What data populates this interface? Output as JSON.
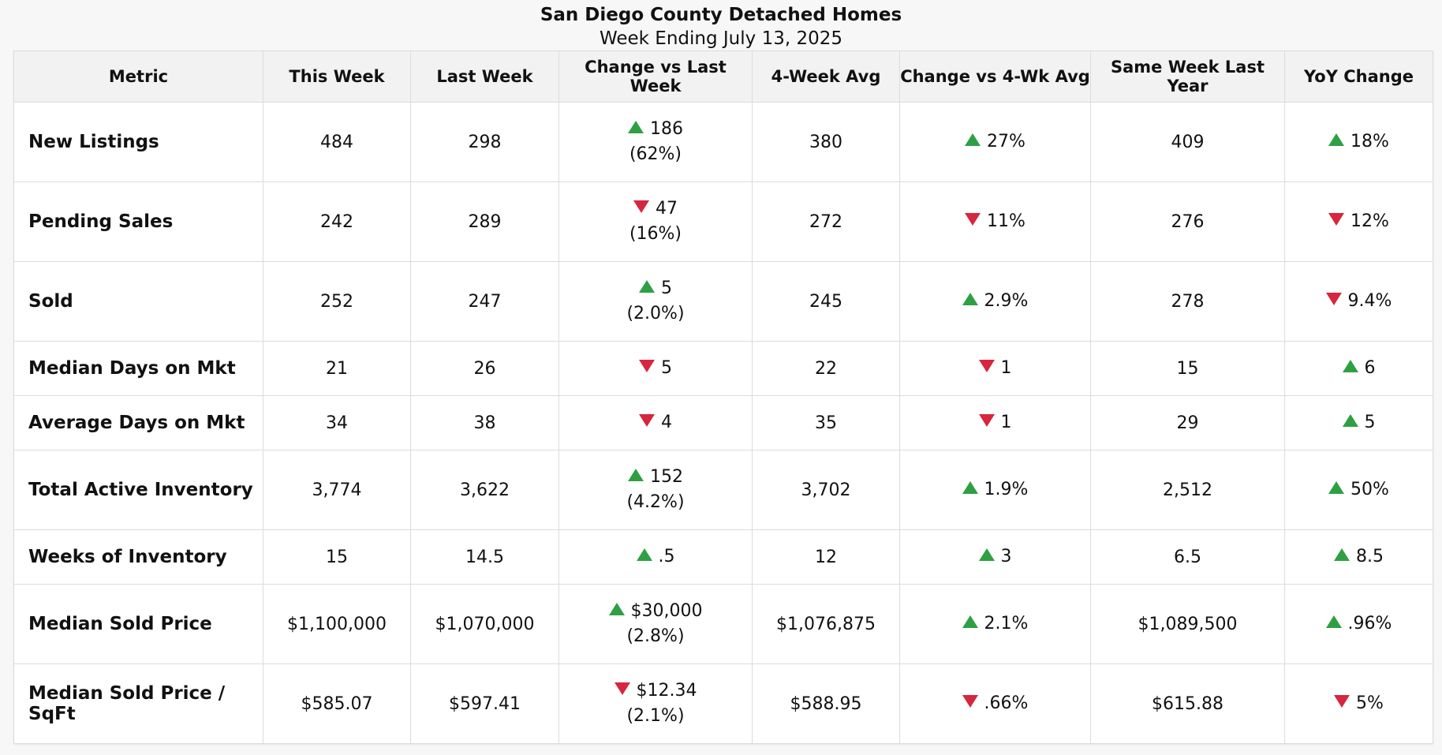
{
  "title": "San Diego County Detached Homes",
  "subtitle": "Week Ending July 13, 2025",
  "colors": {
    "up": "#2ea043",
    "down": "#d7263d"
  },
  "columns": [
    "Metric",
    "This Week",
    "Last Week",
    "Change vs Last Week",
    "4-Week Avg",
    "Change vs 4-Wk Avg",
    "Same Week Last Year",
    "YoY Change"
  ],
  "rows": [
    {
      "metric": "New Listings",
      "this_week": "484",
      "last_week": "298",
      "chg_lw": {
        "dir": "up",
        "value": "186",
        "pct": "(62%)"
      },
      "avg4": "380",
      "chg_4w": {
        "dir": "up",
        "value": "27%"
      },
      "last_year": "409",
      "yoy": {
        "dir": "up",
        "value": "18%"
      }
    },
    {
      "metric": "Pending Sales",
      "this_week": "242",
      "last_week": "289",
      "chg_lw": {
        "dir": "down",
        "value": "47",
        "pct": "(16%)"
      },
      "avg4": "272",
      "chg_4w": {
        "dir": "down",
        "value": "11%"
      },
      "last_year": "276",
      "yoy": {
        "dir": "down",
        "value": "12%"
      }
    },
    {
      "metric": "Sold",
      "this_week": "252",
      "last_week": "247",
      "chg_lw": {
        "dir": "up",
        "value": "5",
        "pct": "(2.0%)"
      },
      "avg4": "245",
      "chg_4w": {
        "dir": "up",
        "value": "2.9%"
      },
      "last_year": "278",
      "yoy": {
        "dir": "down",
        "value": "9.4%"
      }
    },
    {
      "metric": "Median Days on Mkt",
      "this_week": "21",
      "last_week": "26",
      "chg_lw": {
        "dir": "down",
        "value": "5",
        "pct": ""
      },
      "avg4": "22",
      "chg_4w": {
        "dir": "down",
        "value": "1"
      },
      "last_year": "15",
      "yoy": {
        "dir": "up",
        "value": "6"
      }
    },
    {
      "metric": "Average Days on Mkt",
      "this_week": "34",
      "last_week": "38",
      "chg_lw": {
        "dir": "down",
        "value": "4",
        "pct": ""
      },
      "avg4": "35",
      "chg_4w": {
        "dir": "down",
        "value": "1"
      },
      "last_year": "29",
      "yoy": {
        "dir": "up",
        "value": "5"
      }
    },
    {
      "metric": "Total Active Inventory",
      "this_week": "3,774",
      "last_week": "3,622",
      "chg_lw": {
        "dir": "up",
        "value": "152",
        "pct": "(4.2%)"
      },
      "avg4": "3,702",
      "chg_4w": {
        "dir": "up",
        "value": "1.9%"
      },
      "last_year": "2,512",
      "yoy": {
        "dir": "up",
        "value": "50%"
      }
    },
    {
      "metric": "Weeks of Inventory",
      "this_week": "15",
      "last_week": "14.5",
      "chg_lw": {
        "dir": "up",
        "value": ".5",
        "pct": ""
      },
      "avg4": "12",
      "chg_4w": {
        "dir": "up",
        "value": "3"
      },
      "last_year": "6.5",
      "yoy": {
        "dir": "up",
        "value": "8.5"
      }
    },
    {
      "metric": "Median Sold Price",
      "this_week": "$1,100,000",
      "last_week": "$1,070,000",
      "chg_lw": {
        "dir": "up",
        "value": "$30,000",
        "pct": "(2.8%)"
      },
      "avg4": "$1,076,875",
      "chg_4w": {
        "dir": "up",
        "value": "2.1%"
      },
      "last_year": "$1,089,500",
      "yoy": {
        "dir": "up",
        "value": ".96%"
      }
    },
    {
      "metric": "Median Sold Price / SqFt",
      "this_week": "$585.07",
      "last_week": "$597.41",
      "chg_lw": {
        "dir": "down",
        "value": "$12.34",
        "pct": "(2.1%)"
      },
      "avg4": "$588.95",
      "chg_4w": {
        "dir": "down",
        "value": ".66%"
      },
      "last_year": "$615.88",
      "yoy": {
        "dir": "down",
        "value": "5%"
      }
    }
  ]
}
